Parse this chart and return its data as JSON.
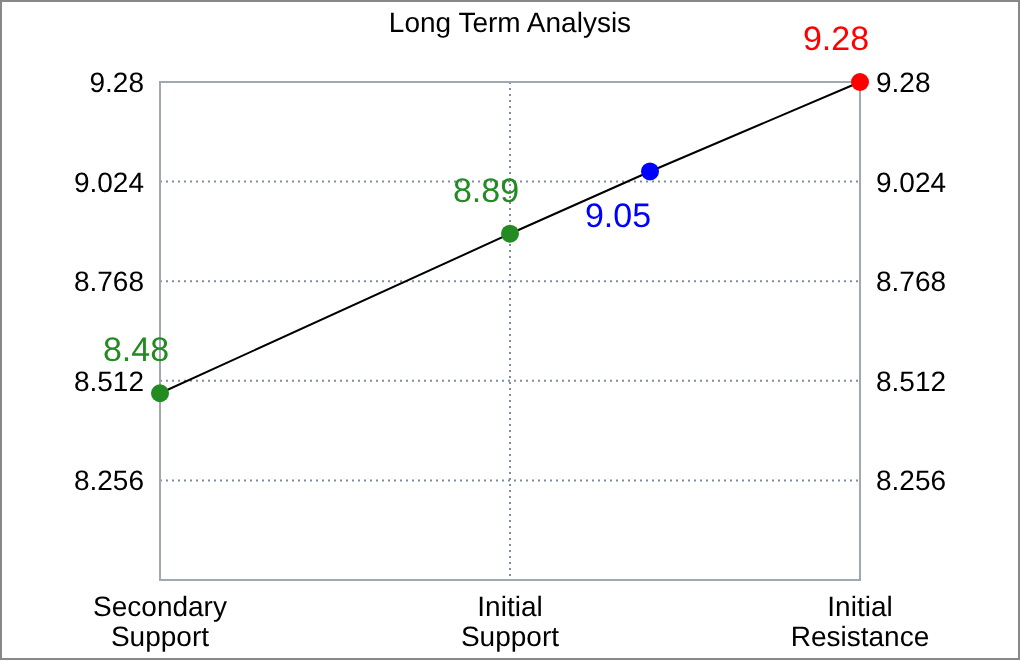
{
  "chart_data": {
    "type": "line",
    "title": "Long Term Analysis",
    "categories": [
      "Secondary Support",
      null,
      null,
      null,
      null,
      "Initial Support",
      null,
      null,
      null,
      null,
      "Initial Resistance"
    ],
    "ylim": [
      8.0,
      9.28
    ],
    "yticks": [
      8.256,
      8.512,
      8.768,
      9.024,
      9.28
    ],
    "y2lim": [
      8.0,
      9.28
    ],
    "y2ticks": [
      8.256,
      8.512,
      8.768,
      9.024,
      9.28
    ],
    "grid": true,
    "data_labels": true,
    "marker": "circle",
    "series": [
      {
        "color": "#000000",
        "colors": [
          "#228b22",
          null,
          null,
          null,
          null,
          "#228b22",
          null,
          "#0000ff",
          null,
          null,
          "#ff0000"
        ],
        "values": [
          8.48,
          null,
          null,
          null,
          null,
          8.89,
          null,
          9.05,
          null,
          null,
          9.28
        ]
      }
    ]
  }
}
